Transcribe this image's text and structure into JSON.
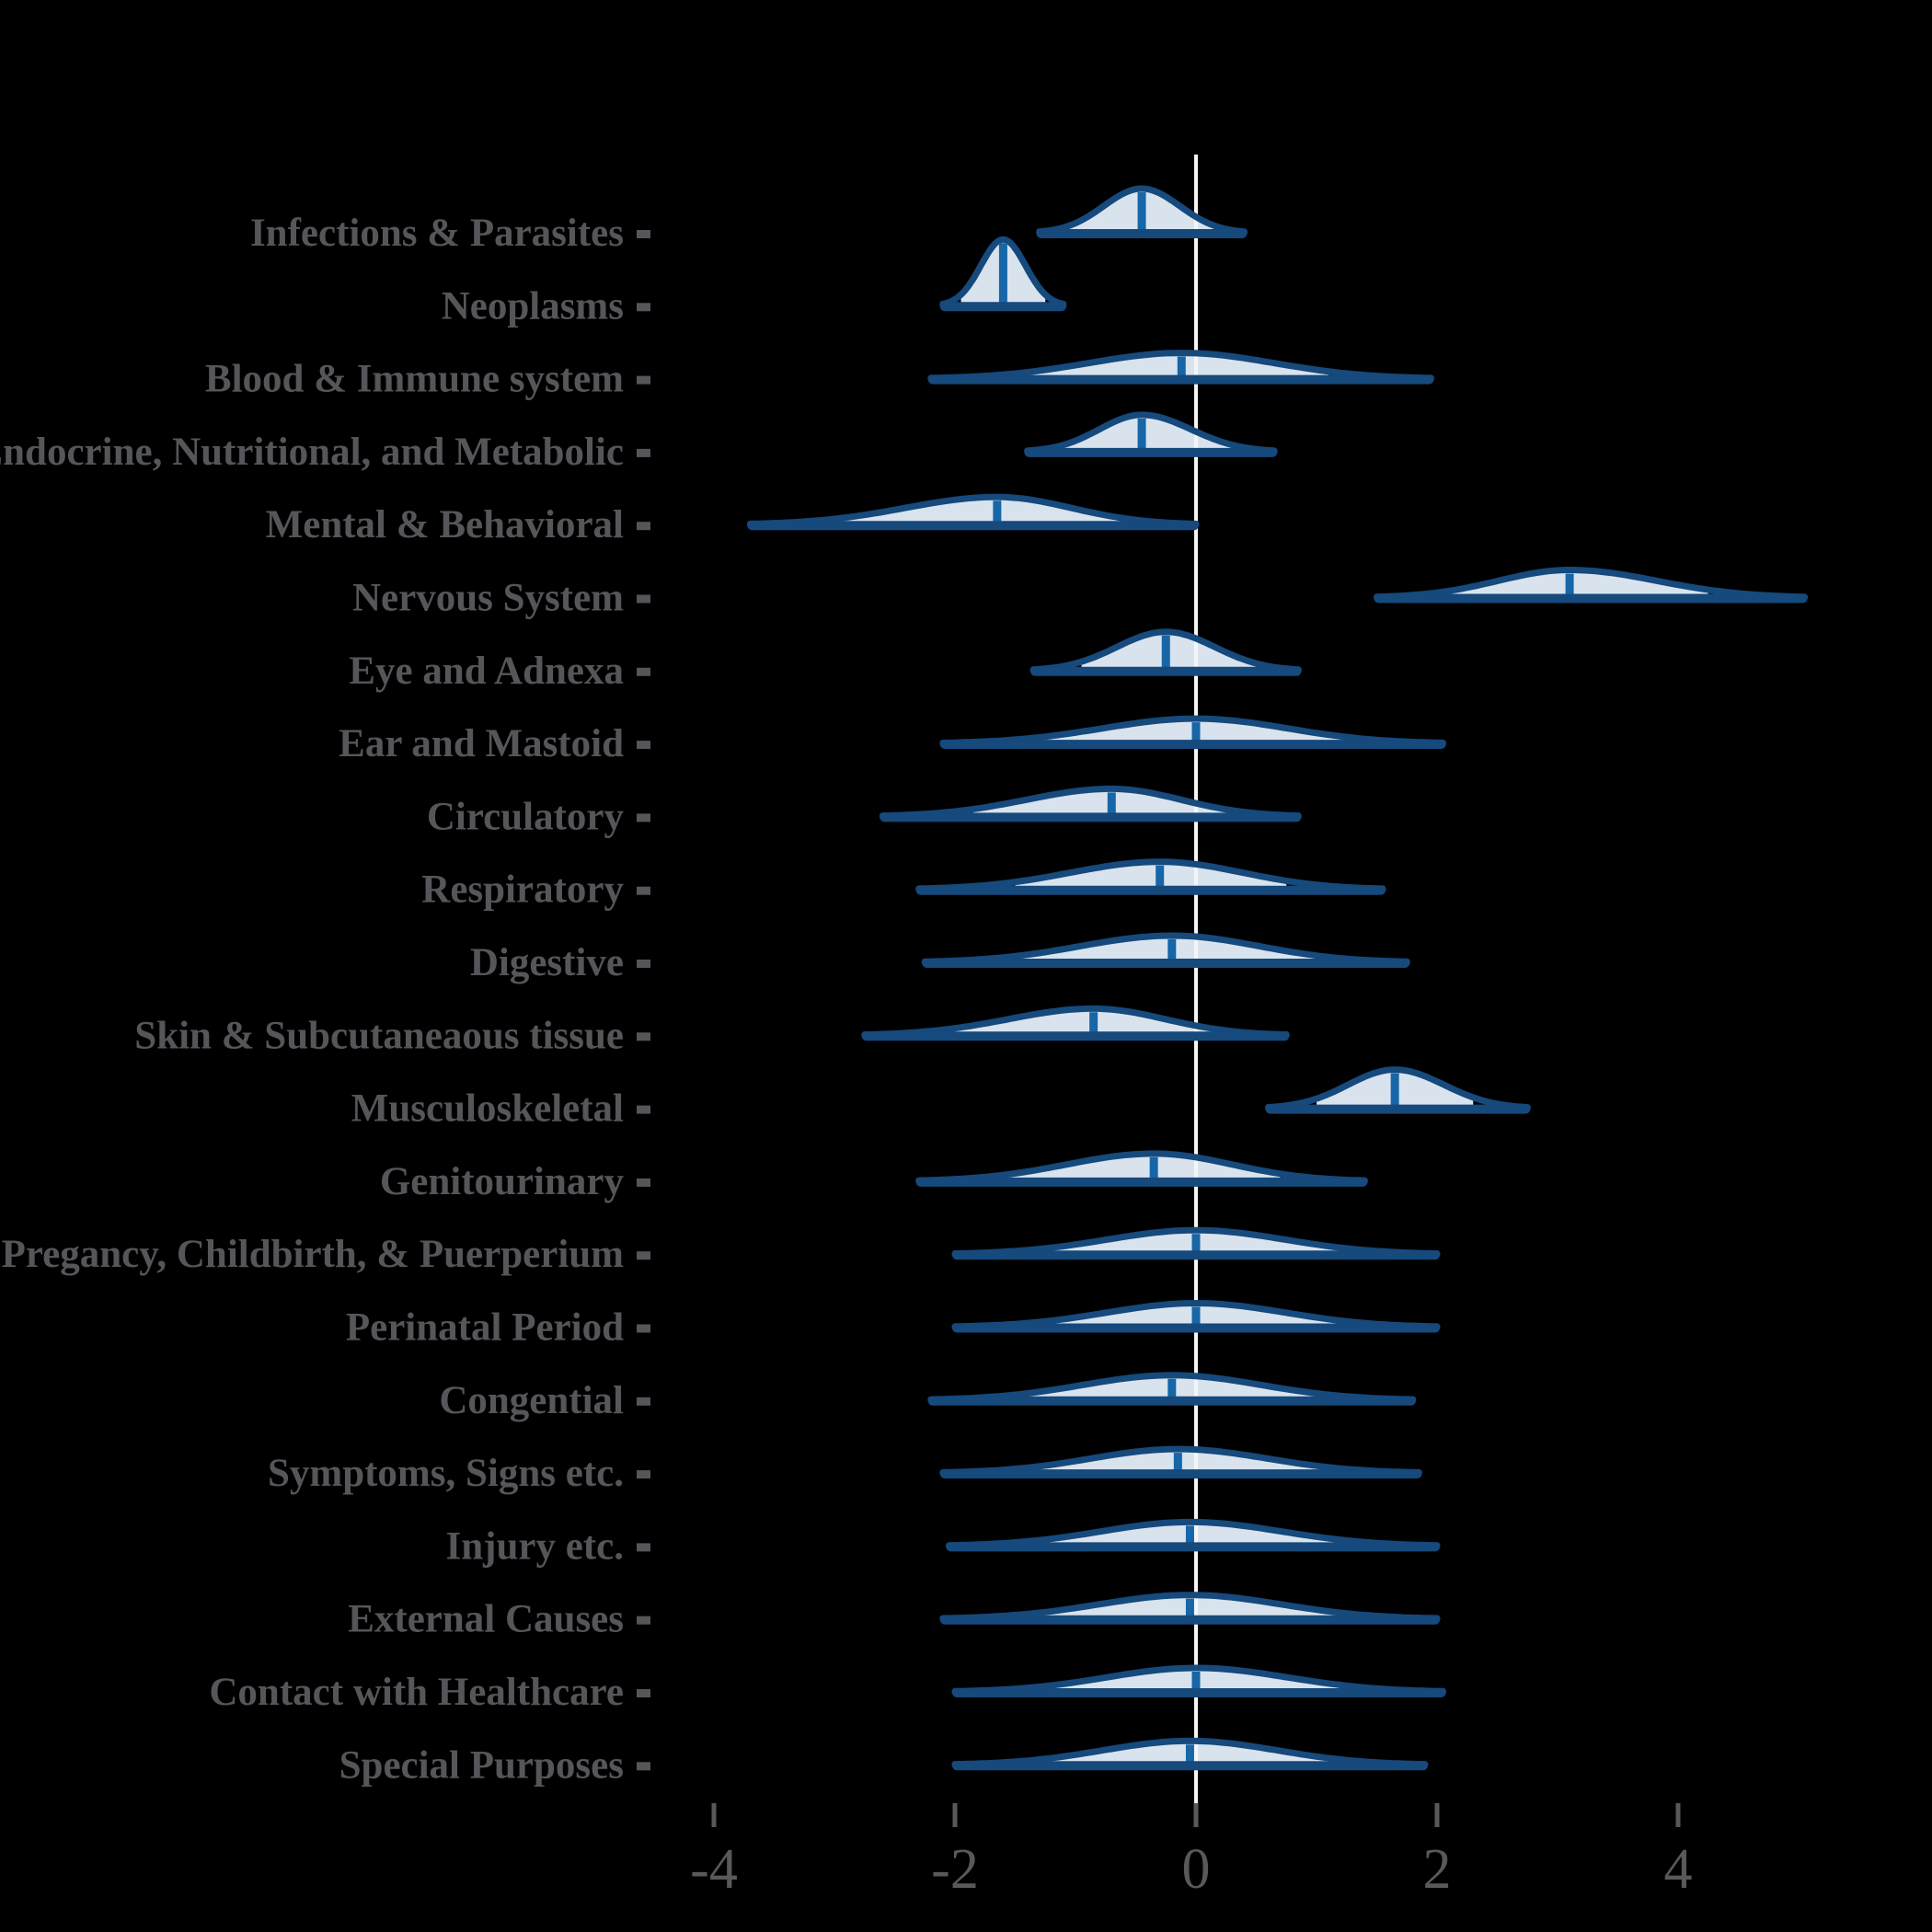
{
  "figure": {
    "background": "#000000",
    "colors": {
      "outline": "#16497C",
      "median_line": "#1666A8",
      "fill": "#D8E3EE",
      "reference_line": "#F5F5F5",
      "category_label": "#55565A",
      "axis_tick": "#58595B"
    }
  },
  "chart_data": {
    "type": "area",
    "subtype": "ridgeline-halfeye-densities",
    "title": "",
    "xlabel": "",
    "ylabel": "",
    "xlim": [
      -4.6,
      5.6
    ],
    "x_axis_ticks": [
      -4,
      -2,
      0,
      2,
      4
    ],
    "x_tick_labels": [
      "-4",
      "-2",
      "0",
      "2",
      "4"
    ],
    "reference_line_x": 0,
    "grid": false,
    "legend": "none",
    "categories": [
      "Infections & Parasites",
      "Neoplasms",
      "Blood & Immune system",
      "Endocrine, Nutritional, and Metabolic",
      "Mental & Behavioral",
      "Nervous System",
      "Eye and Adnexa",
      "Ear and Mastoid",
      "Circulatory",
      "Respiratory",
      "Digestive",
      "Skin & Subcutaneaous tissue",
      "Musculoskeletal",
      "Genitourinary",
      "Pregancy, Childbirth, & Puerperium",
      "Perinatal Period",
      "Congential",
      "Symptoms, Signs etc.",
      "Injury etc.",
      "External Causes",
      "Contact with Healthcare",
      "Special Purposes"
    ],
    "rows": [
      {
        "label": "Infections & Parasites",
        "min": -1.3,
        "median": -0.45,
        "max": 0.4,
        "interval_lo": -1.1,
        "interval_hi": 0.25,
        "peak": 48
      },
      {
        "label": "Neoplasms",
        "min": -2.1,
        "median": -1.6,
        "max": -1.1,
        "interval_lo": -1.95,
        "interval_hi": -1.25,
        "peak": 72
      },
      {
        "label": "Blood & Immune system",
        "min": -2.2,
        "median": -0.12,
        "max": 1.95,
        "interval_lo": -1.5,
        "interval_hi": 1.1,
        "peak": 28
      },
      {
        "label": "Endocrine, Nutritional, and Metabolic",
        "min": -1.4,
        "median": -0.45,
        "max": 0.65,
        "interval_lo": -1.1,
        "interval_hi": 0.3,
        "peak": 40
      },
      {
        "label": "Mental & Behavioral",
        "min": -3.7,
        "median": -1.65,
        "max": 0.0,
        "interval_lo": -2.95,
        "interval_hi": -0.6,
        "peak": 30
      },
      {
        "label": "Nervous System",
        "min": 1.5,
        "median": 3.1,
        "max": 5.05,
        "interval_lo": 2.05,
        "interval_hi": 4.25,
        "peak": 30
      },
      {
        "label": "Eye and Adnexa",
        "min": -1.35,
        "median": -0.25,
        "max": 0.85,
        "interval_lo": -0.95,
        "interval_hi": 0.5,
        "peak": 42
      },
      {
        "label": "Ear and Mastoid",
        "min": -2.1,
        "median": 0.0,
        "max": 2.05,
        "interval_lo": -1.3,
        "interval_hi": 1.3,
        "peak": 27
      },
      {
        "label": "Circulatory",
        "min": -2.6,
        "median": -0.7,
        "max": 0.85,
        "interval_lo": -1.85,
        "interval_hi": 0.25,
        "peak": 30
      },
      {
        "label": "Respiratory",
        "min": -2.3,
        "median": -0.3,
        "max": 1.55,
        "interval_lo": -1.5,
        "interval_hi": 0.75,
        "peak": 30
      },
      {
        "label": "Digestive",
        "min": -2.25,
        "median": -0.2,
        "max": 1.75,
        "interval_lo": -1.45,
        "interval_hi": 1.0,
        "peak": 29
      },
      {
        "label": "Skin & Subcutaneaous tissue",
        "min": -2.75,
        "median": -0.85,
        "max": 0.75,
        "interval_lo": -2.0,
        "interval_hi": 0.3,
        "peak": 29
      },
      {
        "label": "Musculoskeletal",
        "min": 0.6,
        "median": 1.65,
        "max": 2.75,
        "interval_lo": 1.0,
        "interval_hi": 2.3,
        "peak": 42
      },
      {
        "label": "Genitourinary",
        "min": -2.3,
        "median": -0.35,
        "max": 1.4,
        "interval_lo": -1.6,
        "interval_hi": 0.7,
        "peak": 30
      },
      {
        "label": "Pregancy, Childbirth, & Puerperium",
        "min": -2.0,
        "median": 0.0,
        "max": 2.0,
        "interval_lo": -1.25,
        "interval_hi": 1.3,
        "peak": 26
      },
      {
        "label": "Perinatal Period",
        "min": -2.0,
        "median": 0.0,
        "max": 2.0,
        "interval_lo": -1.3,
        "interval_hi": 1.3,
        "peak": 26
      },
      {
        "label": "Congential",
        "min": -2.2,
        "median": -0.2,
        "max": 1.8,
        "interval_lo": -1.45,
        "interval_hi": 1.15,
        "peak": 27
      },
      {
        "label": "Symptoms, Signs etc.",
        "min": -2.1,
        "median": -0.15,
        "max": 1.85,
        "interval_lo": -1.4,
        "interval_hi": 1.2,
        "peak": 26
      },
      {
        "label": "Injury etc.",
        "min": -2.05,
        "median": -0.05,
        "max": 2.0,
        "interval_lo": -1.3,
        "interval_hi": 1.3,
        "peak": 26
      },
      {
        "label": "External Causes",
        "min": -2.1,
        "median": -0.05,
        "max": 2.0,
        "interval_lo": -1.35,
        "interval_hi": 1.3,
        "peak": 26
      },
      {
        "label": "Contact with Healthcare",
        "min": -2.0,
        "median": 0.0,
        "max": 2.05,
        "interval_lo": -1.3,
        "interval_hi": 1.35,
        "peak": 26
      },
      {
        "label": "Special Purposes",
        "min": -2.0,
        "median": -0.05,
        "max": 1.9,
        "interval_lo": -1.3,
        "interval_hi": 1.25,
        "peak": 26
      }
    ]
  }
}
